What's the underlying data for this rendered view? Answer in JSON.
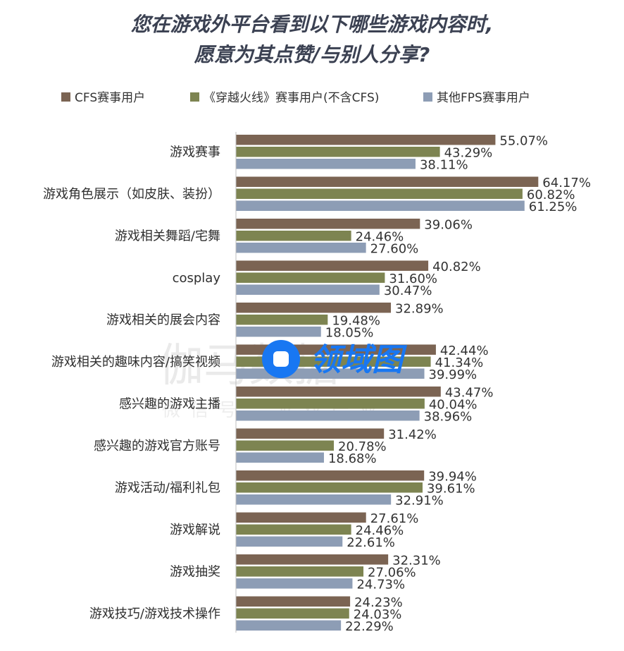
{
  "chart_data": {
    "type": "bar",
    "orientation": "horizontal",
    "title_lines": [
      "您在游戏外平台看到以下哪些游戏内容时,",
      "愿意为其点赞/与别人分享?"
    ],
    "categories": [
      "游戏赛事",
      "游戏角色展示（如皮肤、装扮）",
      "游戏相关舞蹈/宅舞",
      "cosplay",
      "游戏相关的展会内容",
      "游戏相关的趣味内容/搞笑视频",
      "感兴趣的游戏主播",
      "感兴趣的游戏官方账号",
      "游戏活动/福利礼包",
      "游戏解说",
      "游戏抽奖",
      "游戏技巧/游戏技术操作"
    ],
    "series": [
      {
        "name": "CFS赛事用户",
        "color": "#7b6453",
        "values": [
          55.07,
          64.17,
          39.06,
          40.82,
          32.89,
          42.44,
          43.47,
          31.42,
          39.94,
          27.61,
          32.31,
          24.23
        ]
      },
      {
        "name": "《穿越火线》赛事用户(不含CFS)",
        "color": "#7d8451",
        "values": [
          43.29,
          60.82,
          24.46,
          31.6,
          19.48,
          41.34,
          40.04,
          20.78,
          39.61,
          24.46,
          27.06,
          24.03
        ]
      },
      {
        "name": "其他FPS赛事用户",
        "color": "#8d9db5",
        "values": [
          38.11,
          61.25,
          27.6,
          30.47,
          18.05,
          39.99,
          38.96,
          18.68,
          32.91,
          22.61,
          24.73,
          22.29
        ]
      }
    ],
    "value_labels": [
      [
        "55.07%",
        "64.17%",
        "39.06%",
        "40.82%",
        "32.89%",
        "42.44%",
        "43.47%",
        "31.42%",
        "39.94%",
        "27.61%",
        "32.31%",
        "24.23%"
      ],
      [
        "43.29%",
        "60.82%",
        "24.46%",
        "31.60%",
        "19.48%",
        "41.34%",
        "40.04%",
        "20.78%",
        "39.61%",
        "24.46%",
        "27.06%",
        "24.03%"
      ],
      [
        "38.11%",
        "61.25%",
        "27.60%",
        "30.47%",
        "18.05%",
        "39.99%",
        "38.96%",
        "18.68%",
        "32.91%",
        "22.61%",
        "24.73%",
        "22.29%"
      ]
    ],
    "xlim": [
      0,
      70
    ],
    "grid": false,
    "legend_position": "top",
    "watermark": {
      "main": "伽马数据",
      "sub": "微信号：游戏产业"
    },
    "logo": {
      "text": "领域图",
      "color": "#1877f2"
    }
  }
}
